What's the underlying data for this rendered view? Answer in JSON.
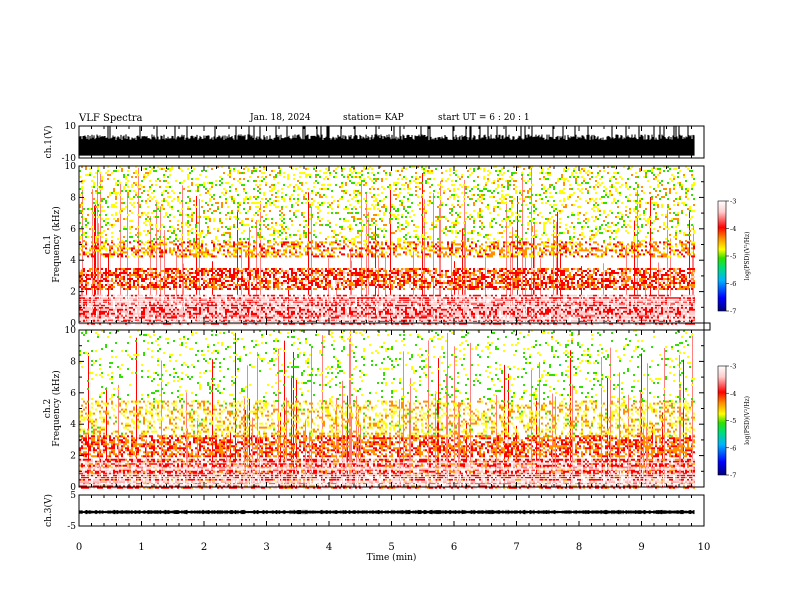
{
  "header": {
    "title": "VLF Spectra",
    "date": "Jan. 18, 2024",
    "station": "station= KAP",
    "start_ut": "start  UT =  6 : 20 : 1"
  },
  "colorbar": {
    "label": "log(PSD)(V²/Hz)",
    "ticks": [
      "-3",
      "-4",
      "-5",
      "-6",
      "-7"
    ],
    "tick_values": [
      -3,
      -4,
      -5,
      -6,
      -7
    ],
    "range": [
      -7,
      -3
    ],
    "colors": [
      "#00007a",
      "#0000ff",
      "#00b4ff",
      "#00e070",
      "#30e000",
      "#ffff00",
      "#ff9000",
      "#ff0000",
      "#ffcccc",
      "#ffffff"
    ]
  },
  "chart_data": [
    {
      "type": "line",
      "name": "ch1-waveform",
      "ylabel": "ch.1(V)",
      "ylim": [
        -10,
        10
      ],
      "yticks": [
        "10",
        "-10"
      ],
      "ytick_values": [
        10,
        -10
      ],
      "x_range_min": [
        0,
        9.85
      ],
      "description_values": {
        "baseline": -6,
        "peak_typical": 4,
        "peak_max": 10
      }
    },
    {
      "type": "heatmap",
      "name": "ch1-spectrogram",
      "ylabel": "ch.1 Frequency (kHz)",
      "ylim": [
        0,
        10
      ],
      "yticks": [
        "10",
        "8",
        "6",
        "4",
        "2",
        "0"
      ],
      "ytick_values": [
        10,
        8,
        6,
        4,
        2,
        0
      ],
      "x_range_min": [
        0,
        9.85
      ],
      "bands": [
        {
          "f_lo": 0,
          "f_hi": 1.8,
          "level": -3.6
        },
        {
          "f_lo": 2.2,
          "f_hi": 3.5,
          "level": -4.0
        },
        {
          "f_lo": 4.2,
          "f_hi": 5.2,
          "level": -4.3
        },
        {
          "f_lo": 5.2,
          "f_hi": 10,
          "level": -4.8
        }
      ]
    },
    {
      "type": "heatmap",
      "name": "ch2-spectrogram",
      "ylabel": "ch.2 Frequency (kHz)",
      "ylim": [
        0,
        10
      ],
      "yticks": [
        "10",
        "8",
        "6",
        "4",
        "2",
        "0"
      ],
      "ytick_values": [
        10,
        8,
        6,
        4,
        2,
        0
      ],
      "x_range_min": [
        0,
        9.85
      ],
      "bands": [
        {
          "f_lo": 0,
          "f_hi": 1.8,
          "level": -3.8
        },
        {
          "f_lo": 2.0,
          "f_hi": 3.3,
          "level": -4.1
        },
        {
          "f_lo": 3.3,
          "f_hi": 5.5,
          "level": -4.6
        },
        {
          "f_lo": 5.5,
          "f_hi": 10,
          "level": -5.0
        }
      ]
    },
    {
      "type": "line",
      "name": "ch3-waveform",
      "ylabel": "ch.3(V)",
      "ylim": [
        -5,
        5
      ],
      "yticks": [
        "5",
        "-5"
      ],
      "ytick_values": [
        5,
        -5
      ],
      "x_range_min": [
        0,
        9.85
      ],
      "description_values": {
        "mean": -0.5,
        "amplitude": 0.5
      }
    }
  ],
  "x_axis": {
    "label": "Time  (min)",
    "ticks": [
      "0",
      "1",
      "2",
      "3",
      "4",
      "5",
      "6",
      "7",
      "8",
      "9",
      "10"
    ],
    "tick_values": [
      0,
      1,
      2,
      3,
      4,
      5,
      6,
      7,
      8,
      9,
      10
    ],
    "range": [
      0,
      10
    ]
  }
}
